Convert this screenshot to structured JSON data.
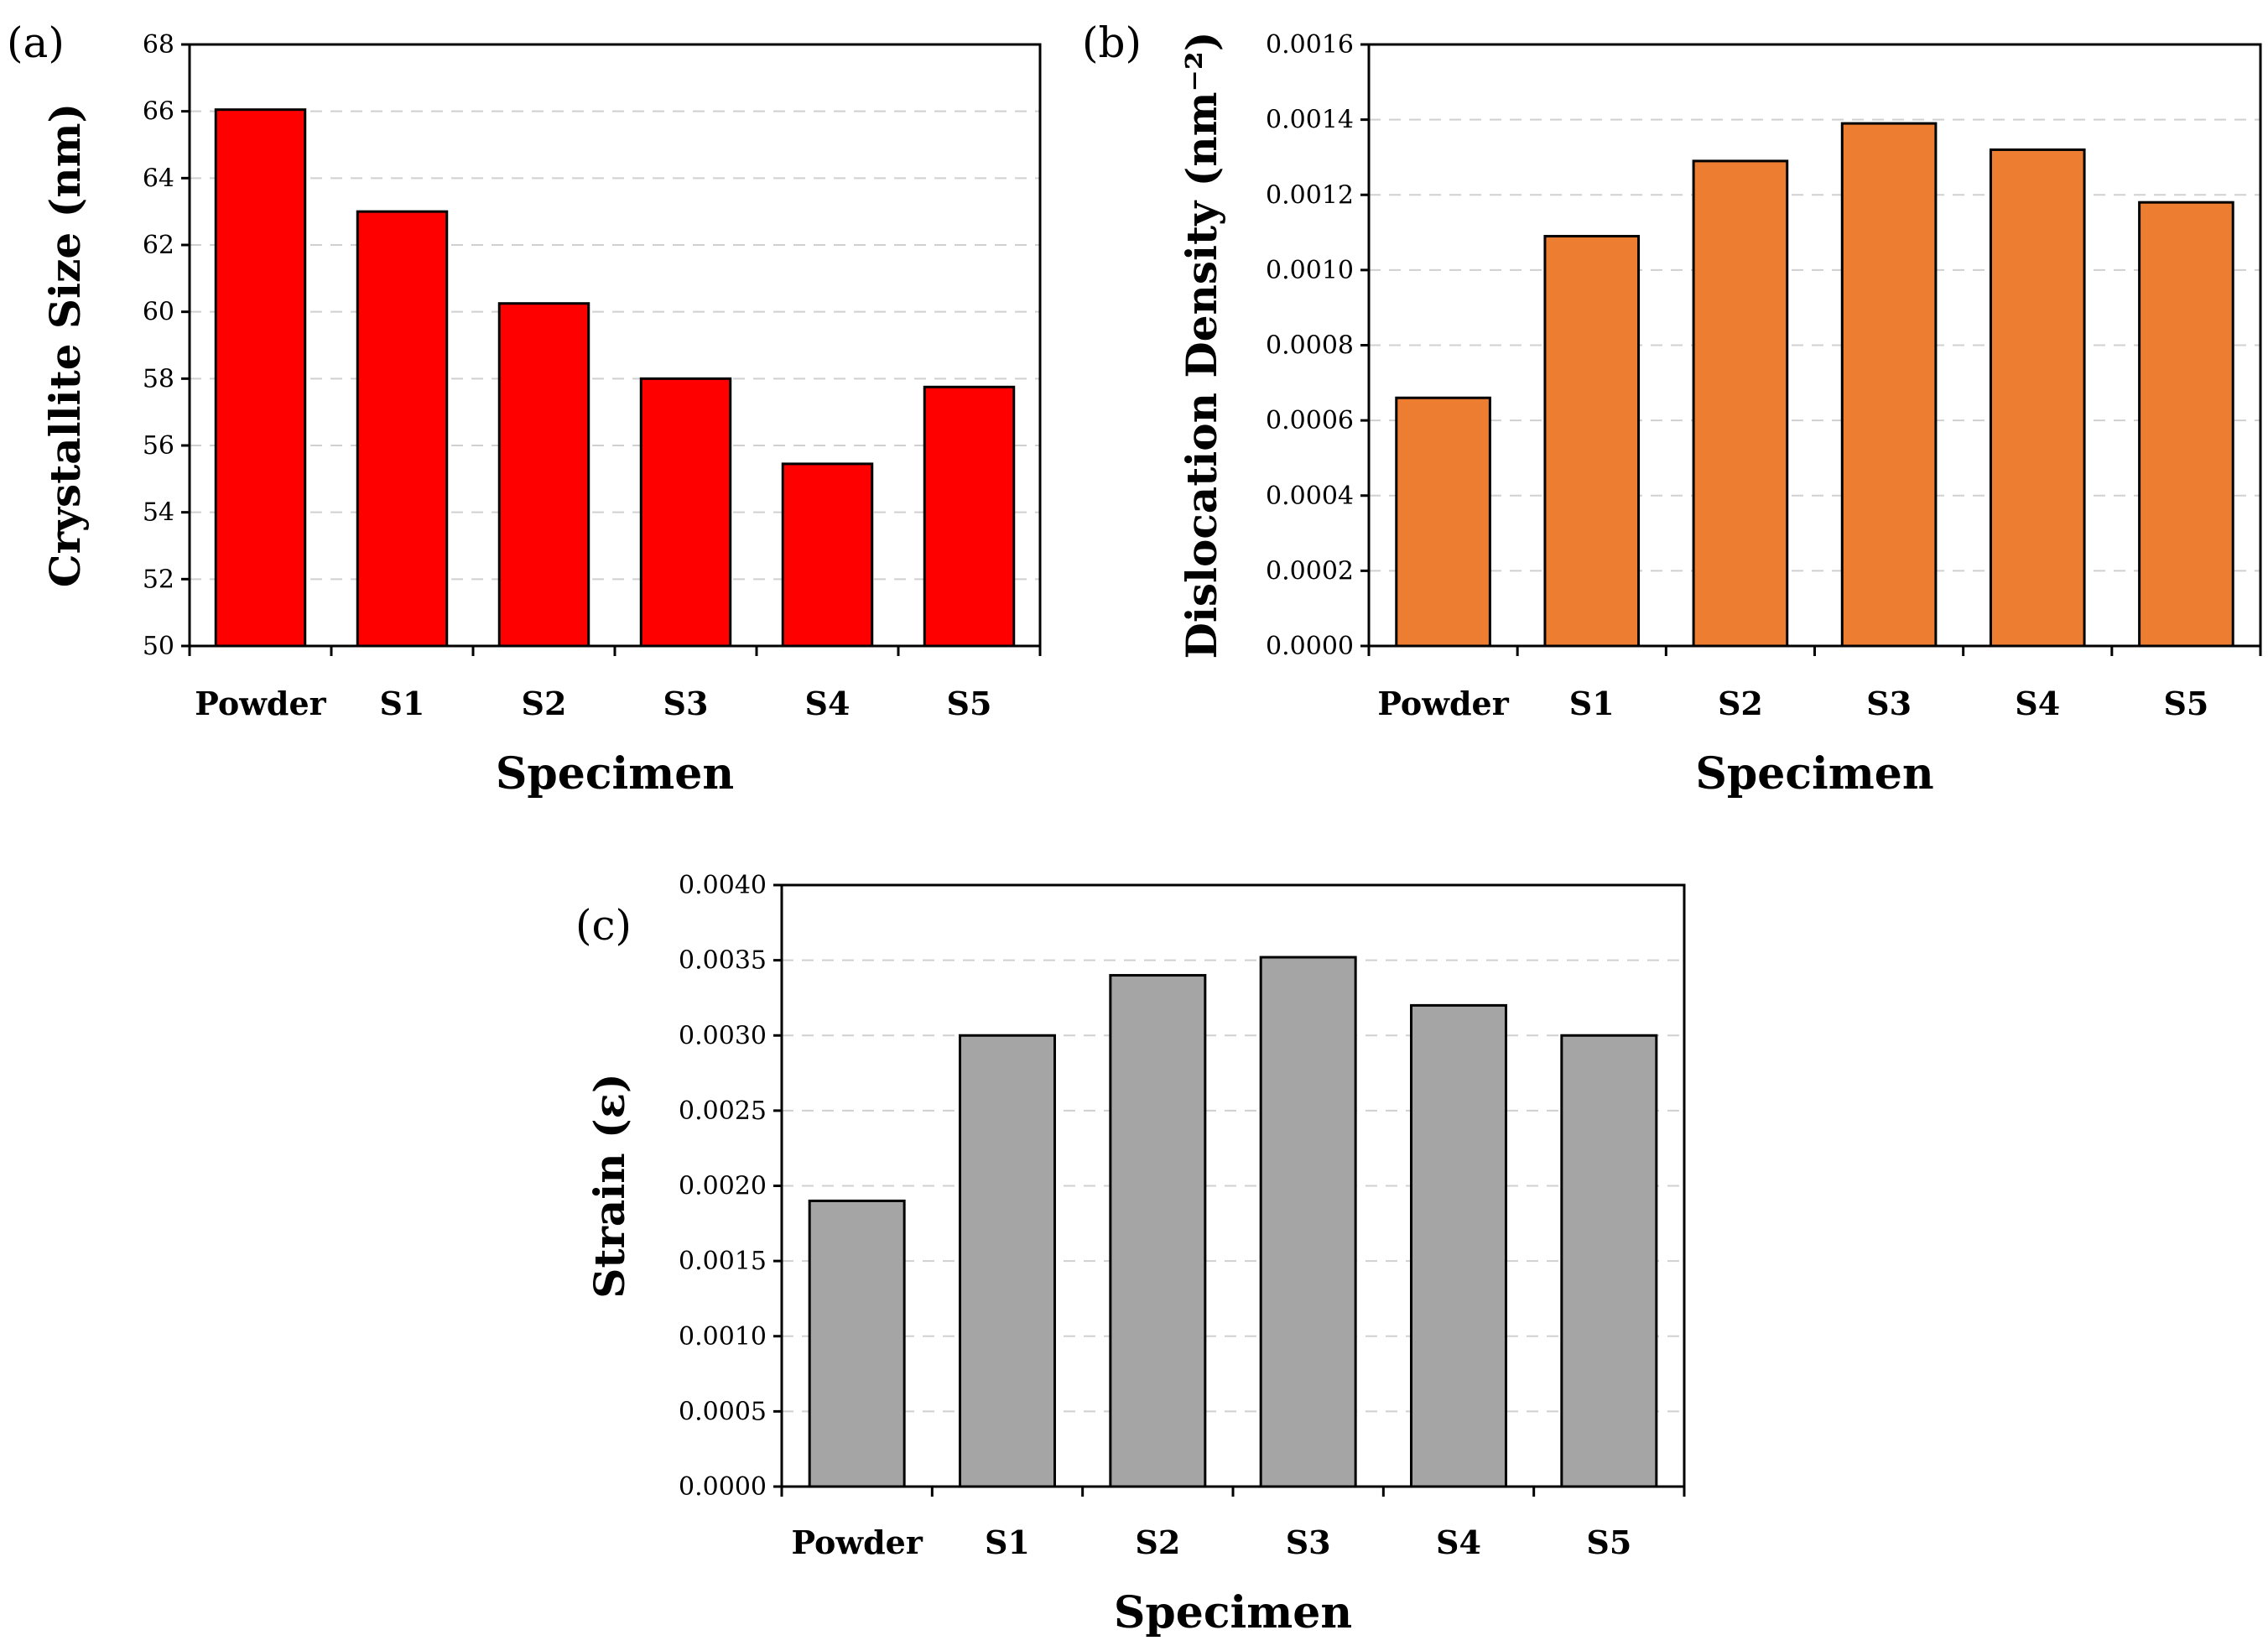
{
  "chart_data": [
    {
      "panel_label": "(a)",
      "type": "bar",
      "categories": [
        "Powder",
        "S1",
        "S2",
        "S3",
        "S4",
        "S5"
      ],
      "values": [
        66.05,
        63.0,
        60.25,
        58.0,
        55.45,
        57.75
      ],
      "ylim": [
        50,
        68
      ],
      "yticks": [
        "50",
        "52",
        "54",
        "56",
        "58",
        "60",
        "62",
        "64",
        "66",
        "68"
      ],
      "xlabel": "Specimen",
      "ylabel": "Crystallite Size (nm)",
      "bar_color": "#ff0000",
      "grid": true
    },
    {
      "panel_label": "(b)",
      "type": "bar",
      "categories": [
        "Powder",
        "S1",
        "S2",
        "S3",
        "S4",
        "S5"
      ],
      "values": [
        0.00066,
        0.00109,
        0.00129,
        0.00139,
        0.00132,
        0.00118
      ],
      "ylim": [
        0,
        0.0016
      ],
      "yticks": [
        "0.0000",
        "0.0002",
        "0.0004",
        "0.0006",
        "0.0008",
        "0.0010",
        "0.0012",
        "0.0014",
        "0.0016"
      ],
      "xlabel": "Specimen",
      "ylabel": "Dislocation Density (nm⁻²)",
      "bar_color": "#ed7d31",
      "grid": true
    },
    {
      "panel_label": "(c)",
      "type": "bar",
      "categories": [
        "Powder",
        "S1",
        "S2",
        "S3",
        "S4",
        "S5"
      ],
      "values": [
        0.0019,
        0.003,
        0.0034,
        0.00352,
        0.0032,
        0.003
      ],
      "ylim": [
        0,
        0.004
      ],
      "yticks": [
        "0.0000",
        "0.0005",
        "0.0010",
        "0.0015",
        "0.0020",
        "0.0025",
        "0.0030",
        "0.0035",
        "0.0040"
      ],
      "xlabel": "Specimen",
      "ylabel": "Strain (ε)",
      "bar_color": "#a5a5a5",
      "grid": true
    }
  ]
}
